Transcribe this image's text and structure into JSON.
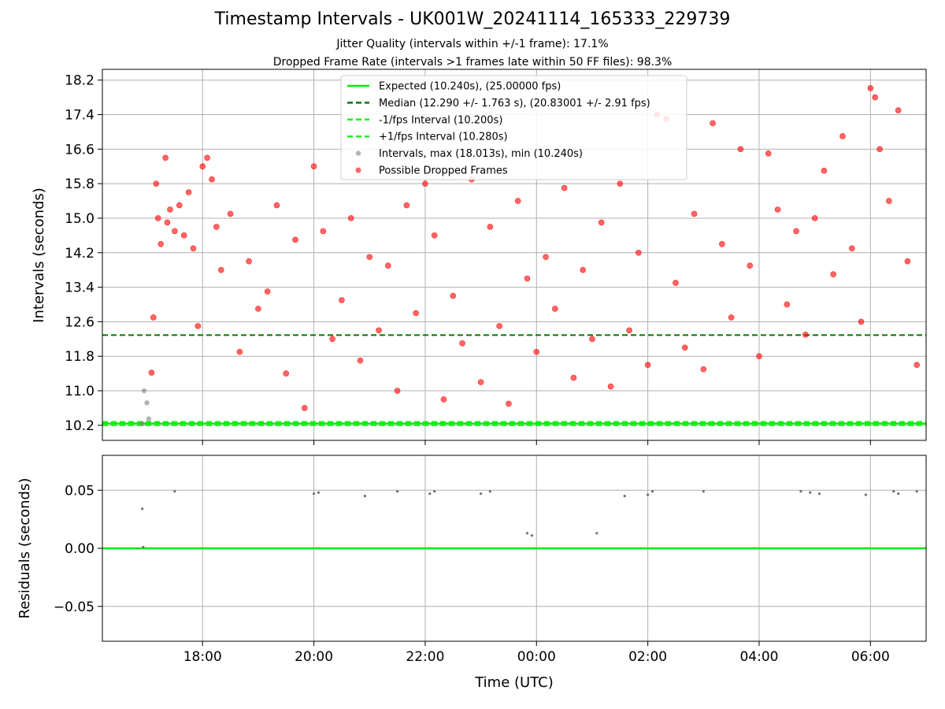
{
  "title": "Timestamp Intervals - UK001W_20241114_165333_229739",
  "subtitle1": "Jitter Quality (intervals within +/-1 frame): 17.1%",
  "subtitle2": "Dropped Frame Rate (intervals >1 frames late within 50 FF files): 98.3%",
  "colors": {
    "expected": "#00ee00",
    "median": "#007700",
    "interval_line": "#22ee22",
    "dropped": "#ff0000",
    "intervals": "#808080",
    "residual_points": "#707070",
    "grid": "#b0b0b0"
  },
  "chart_data": [
    {
      "type": "scatter",
      "panel": "top",
      "title": "Timestamp Intervals - UK001W_20241114_165333_229739",
      "xlabel": "",
      "ylabel": "Intervals (seconds)",
      "yticks": [
        "10.2",
        "11.0",
        "11.8",
        "12.6",
        "13.4",
        "14.2",
        "15.0",
        "15.8",
        "16.6",
        "17.4",
        "18.2"
      ],
      "ylim": [
        9.85,
        18.45
      ],
      "xlim": [
        "16:12",
        "07:00"
      ],
      "grid": true,
      "legend_position": "upper center",
      "lines": [
        {
          "name": "Expected (10.240s), (25.00000 fps)",
          "y": 10.24,
          "style": "solid",
          "color": "#00ee00"
        },
        {
          "name": "Median (12.290 +/- 1.763 s), (20.83001 +/- 2.91 fps)",
          "y": 12.29,
          "style": "dashed",
          "color": "#007700"
        },
        {
          "name": "-1/fps Interval (10.200s)",
          "y": 10.2,
          "style": "dashed",
          "color": "#22ee22"
        },
        {
          "name": "+1/fps Interval (10.280s)",
          "y": 10.28,
          "style": "dashed",
          "color": "#22ee22"
        }
      ],
      "series": [
        {
          "name": "Intervals, max (18.013s), min (10.240s)",
          "color": "#808080",
          "points": [
            [
              "16:55",
              10.24
            ],
            [
              "17:00",
              10.72
            ],
            [
              "16:57",
              11.0
            ],
            [
              "17:02",
              10.35
            ]
          ]
        },
        {
          "name": "Possible Dropped Frames",
          "color": "#ff0000",
          "points": [
            [
              "17:05",
              11.42
            ],
            [
              "17:07",
              12.7
            ],
            [
              "17:10",
              15.8
            ],
            [
              "17:12",
              15.0
            ],
            [
              "17:15",
              14.4
            ],
            [
              "17:20",
              16.4
            ],
            [
              "17:22",
              14.9
            ],
            [
              "17:25",
              15.2
            ],
            [
              "17:30",
              14.7
            ],
            [
              "17:35",
              15.3
            ],
            [
              "17:40",
              14.6
            ],
            [
              "17:45",
              15.6
            ],
            [
              "17:50",
              14.3
            ],
            [
              "17:55",
              12.5
            ],
            [
              "18:00",
              16.2
            ],
            [
              "18:05",
              16.4
            ],
            [
              "18:10",
              15.9
            ],
            [
              "18:15",
              14.8
            ],
            [
              "18:20",
              13.8
            ],
            [
              "18:30",
              15.1
            ],
            [
              "18:40",
              11.9
            ],
            [
              "18:50",
              14.0
            ],
            [
              "19:00",
              12.9
            ],
            [
              "19:10",
              13.3
            ],
            [
              "19:20",
              15.3
            ],
            [
              "19:30",
              11.4
            ],
            [
              "19:40",
              14.5
            ],
            [
              "19:50",
              10.6
            ],
            [
              "20:00",
              16.2
            ],
            [
              "20:10",
              14.7
            ],
            [
              "20:20",
              12.2
            ],
            [
              "20:30",
              13.1
            ],
            [
              "20:40",
              15.0
            ],
            [
              "20:50",
              11.7
            ],
            [
              "21:00",
              14.1
            ],
            [
              "21:10",
              12.4
            ],
            [
              "21:20",
              13.9
            ],
            [
              "21:30",
              11.0
            ],
            [
              "21:40",
              15.3
            ],
            [
              "21:50",
              12.8
            ],
            [
              "22:00",
              15.8
            ],
            [
              "22:10",
              14.6
            ],
            [
              "22:20",
              10.8
            ],
            [
              "22:30",
              13.2
            ],
            [
              "22:40",
              12.1
            ],
            [
              "22:50",
              15.9
            ],
            [
              "23:00",
              11.2
            ],
            [
              "23:10",
              14.8
            ],
            [
              "23:20",
              12.5
            ],
            [
              "23:30",
              10.7
            ],
            [
              "23:40",
              15.4
            ],
            [
              "23:50",
              13.6
            ],
            [
              "00:00",
              11.9
            ],
            [
              "00:10",
              14.1
            ],
            [
              "00:20",
              12.9
            ],
            [
              "00:30",
              15.7
            ],
            [
              "00:40",
              11.3
            ],
            [
              "00:50",
              13.8
            ],
            [
              "01:00",
              12.2
            ],
            [
              "01:10",
              14.9
            ],
            [
              "01:20",
              11.1
            ],
            [
              "01:30",
              15.8
            ],
            [
              "01:40",
              12.4
            ],
            [
              "01:50",
              14.2
            ],
            [
              "02:00",
              11.6
            ],
            [
              "02:10",
              17.4
            ],
            [
              "02:20",
              17.3
            ],
            [
              "02:30",
              13.5
            ],
            [
              "02:40",
              12.0
            ],
            [
              "02:50",
              15.1
            ],
            [
              "03:00",
              11.5
            ],
            [
              "03:10",
              17.2
            ],
            [
              "03:20",
              14.4
            ],
            [
              "03:30",
              12.7
            ],
            [
              "03:40",
              16.6
            ],
            [
              "03:50",
              13.9
            ],
            [
              "04:00",
              11.8
            ],
            [
              "04:10",
              16.5
            ],
            [
              "04:20",
              15.2
            ],
            [
              "04:30",
              13.0
            ],
            [
              "04:40",
              14.7
            ],
            [
              "04:50",
              12.3
            ],
            [
              "05:00",
              15.0
            ],
            [
              "05:10",
              16.1
            ],
            [
              "05:20",
              13.7
            ],
            [
              "05:30",
              16.9
            ],
            [
              "05:40",
              14.3
            ],
            [
              "05:50",
              12.6
            ],
            [
              "06:00",
              18.013
            ],
            [
              "06:05",
              17.8
            ],
            [
              "06:10",
              16.6
            ],
            [
              "06:20",
              15.4
            ],
            [
              "06:30",
              17.5
            ],
            [
              "06:40",
              14.0
            ],
            [
              "06:50",
              11.6
            ]
          ]
        }
      ]
    },
    {
      "type": "scatter",
      "panel": "bottom",
      "xlabel": "Time (UTC)",
      "ylabel": "Residuals (seconds)",
      "xticks": [
        "18:00",
        "20:00",
        "22:00",
        "00:00",
        "02:00",
        "04:00",
        "06:00"
      ],
      "yticks": [
        "0.05",
        "0.00",
        "−0.05"
      ],
      "ylim": [
        -0.08,
        0.08
      ],
      "grid": true,
      "zero_line_color": "#00ee00",
      "series": [
        {
          "name": "",
          "color": "#707070",
          "points": [
            [
              "16:55",
              0.034
            ],
            [
              "16:56",
              0.001
            ],
            [
              "17:30",
              0.049
            ],
            [
              "20:00",
              0.047
            ],
            [
              "20:05",
              0.048
            ],
            [
              "20:55",
              0.045
            ],
            [
              "21:30",
              0.049
            ],
            [
              "22:05",
              0.047
            ],
            [
              "22:10",
              0.049
            ],
            [
              "23:00",
              0.047
            ],
            [
              "23:10",
              0.049
            ],
            [
              "01:35",
              0.045
            ],
            [
              "02:00",
              0.046
            ],
            [
              "02:05",
              0.049
            ],
            [
              "03:00",
              0.049
            ],
            [
              "04:45",
              0.049
            ],
            [
              "04:55",
              0.048
            ],
            [
              "05:05",
              0.047
            ],
            [
              "05:55",
              0.046
            ],
            [
              "06:25",
              0.049
            ],
            [
              "06:30",
              0.047
            ],
            [
              "06:50",
              0.049
            ],
            [
              "23:50",
              0.013
            ],
            [
              "23:55",
              0.011
            ],
            [
              "01:05",
              0.013
            ]
          ]
        }
      ]
    }
  ],
  "legend": [
    "Expected (10.240s), (25.00000 fps)",
    "Median (12.290 +/- 1.763 s), (20.83001 +/- 2.91 fps)",
    "-1/fps Interval (10.200s)",
    "+1/fps Interval (10.280s)",
    "Intervals, max (18.013s), min (10.240s)",
    "Possible Dropped Frames"
  ]
}
